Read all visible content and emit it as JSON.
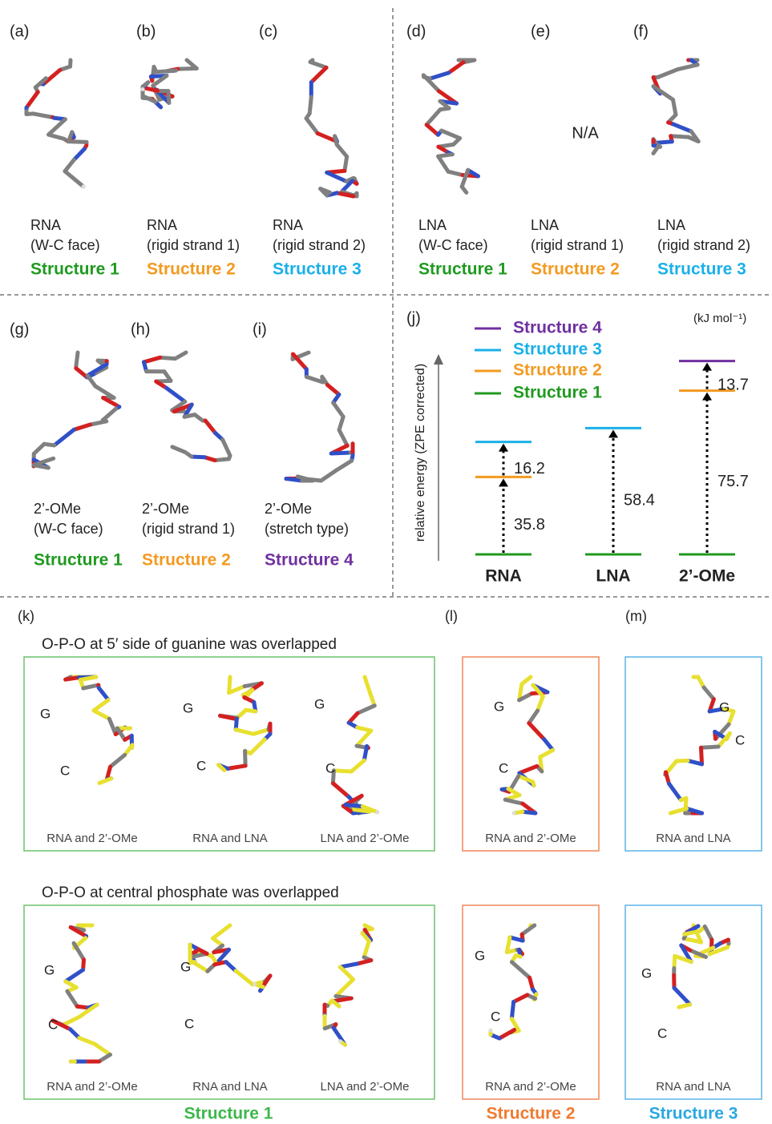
{
  "top_panels": [
    {
      "letter": "(a)",
      "molecule": "RNA",
      "conformer": "(W-C face)",
      "structure": "Structure 1"
    },
    {
      "letter": "(b)",
      "molecule": "RNA",
      "conformer": "(rigid strand 1)",
      "structure": "Structure 2"
    },
    {
      "letter": "(c)",
      "molecule": "RNA",
      "conformer": "(rigid strand 2)",
      "structure": "Structure 3"
    },
    {
      "letter": "(d)",
      "molecule": "LNA",
      "conformer": "(W-C face)",
      "structure": "Structure 1"
    },
    {
      "letter": "(e)",
      "molecule": "LNA",
      "conformer": "(rigid strand 1)",
      "structure": "Structure 2",
      "note": "N/A"
    },
    {
      "letter": "(f)",
      "molecule": "LNA",
      "conformer": "(rigid strand 2)",
      "structure": "Structure 3"
    }
  ],
  "mid_panels": [
    {
      "letter": "(g)",
      "molecule": "2’-OMe",
      "conformer": "(W-C face)",
      "structure": "Structure 1"
    },
    {
      "letter": "(h)",
      "molecule": "2’-OMe",
      "conformer": "(rigid strand 1)",
      "structure": "Structure 2"
    },
    {
      "letter": "(i)",
      "molecule": "2’-OMe",
      "conformer": "(stretch type)",
      "structure": "Structure 4"
    }
  ],
  "energy_diagram": {
    "letter": "(j)",
    "unit": "(kJ mol⁻¹)",
    "y_label": "relative energy (ZPE corrected)",
    "legend": [
      {
        "name": "Structure 4",
        "color": "#7030a0"
      },
      {
        "name": "Structure 3",
        "color": "#1ab0e8"
      },
      {
        "name": "Structure 2",
        "color": "#f39a21"
      },
      {
        "name": "Structure 1",
        "color": "#1f9a1f"
      }
    ],
    "groups": [
      {
        "label": "RNA",
        "base": "Structure 1",
        "steps": [
          {
            "structure": "Structure 2",
            "gap": 35.8
          },
          {
            "structure": "Structure 3",
            "gap": 16.2
          }
        ]
      },
      {
        "label": "LNA",
        "base": "Structure 1",
        "steps": [
          {
            "structure": "Structure 3",
            "gap": 58.4
          }
        ]
      },
      {
        "label": "2’-OMe",
        "base": "Structure 1",
        "steps": [
          {
            "structure": "Structure 2",
            "gap": 75.7
          },
          {
            "structure": "Structure 4",
            "gap": 13.7
          }
        ]
      }
    ]
  },
  "overlay_letters": [
    "(k)",
    "(l)",
    "(m)"
  ],
  "overlays": [
    {
      "heading": "O-P-O at 5′ side of guanine was overlapped",
      "panels": [
        {
          "caption": "RNA and 2’-OMe",
          "labels": [
            "G",
            "C"
          ]
        },
        {
          "caption": "RNA and LNA",
          "labels": [
            "G",
            "C"
          ]
        },
        {
          "caption": "LNA and 2’-OMe",
          "labels": [
            "G",
            "C"
          ]
        },
        {
          "caption": "RNA and 2’-OMe",
          "labels": [
            "G",
            "C"
          ]
        },
        {
          "caption": "RNA and LNA",
          "labels": [
            "G",
            "C"
          ]
        }
      ]
    },
    {
      "heading": "O-P-O at central phosphate was overlapped",
      "panels": [
        {
          "caption": "RNA and 2’-OMe",
          "labels": [
            "G",
            "C"
          ]
        },
        {
          "caption": "RNA and LNA",
          "labels": [
            "G",
            "C"
          ]
        },
        {
          "caption": "LNA and 2’-OMe",
          "labels": []
        },
        {
          "caption": "RNA and 2’-OMe",
          "labels": [
            "G",
            "C"
          ]
        },
        {
          "caption": "RNA and LNA",
          "labels": [
            "G",
            "C"
          ]
        }
      ]
    }
  ],
  "group_labels": [
    "Structure 1",
    "Structure 2",
    "Structure 3"
  ]
}
